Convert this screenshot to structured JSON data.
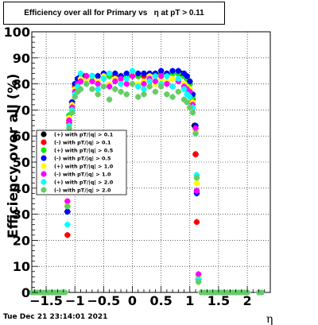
{
  "title": "Efficiency over all for Primary vs   η at pT > 0.11",
  "footer": "Tue Dec 21 23:14:01 2021",
  "chart_data": {
    "type": "scatter",
    "title": "Efficiency over all for Primary vs   η at pT > 0.11",
    "xlabel": "η",
    "ylabel": "Efficiency over all (%)",
    "xlim": [
      -1.75,
      2.4
    ],
    "ylim": [
      0,
      100
    ],
    "x_ticks": [
      -1.5,
      -1,
      -0.5,
      0,
      0.5,
      1,
      1.5,
      2
    ],
    "x_tick_labels": [
      "−1.5",
      "−1",
      "−0.5",
      "0",
      "0.5",
      "1",
      "1.5",
      "2"
    ],
    "y_ticks": [
      0,
      10,
      20,
      30,
      40,
      50,
      60,
      70,
      80,
      90,
      100
    ],
    "grid": true,
    "legend_position": "left-middle",
    "series": [
      {
        "name": "(+) with pT/|q| > 0.1",
        "color": "#000000",
        "x": [
          -1.13,
          -1.1,
          -1.05,
          -1.0,
          -0.95,
          -0.9,
          -0.85,
          -0.8,
          -0.7,
          -0.6,
          -0.5,
          -0.4,
          -0.3,
          -0.2,
          -0.1,
          0.0,
          0.1,
          0.2,
          0.3,
          0.4,
          0.5,
          0.6,
          0.7,
          0.8,
          0.85,
          0.9,
          0.95,
          1.0,
          1.05,
          1.08,
          1.1,
          1.12,
          1.15
        ],
        "y": [
          31,
          66,
          73,
          80,
          82,
          83,
          83,
          83,
          83,
          83,
          83,
          83,
          83,
          83,
          83,
          83,
          83,
          83,
          84,
          84,
          84,
          84,
          84,
          84,
          84,
          83,
          82,
          80,
          73,
          64,
          53,
          39,
          5
        ]
      },
      {
        "name": "(-) with pT/|q| > 0.1",
        "color": "#ff0000",
        "x": [
          -1.13,
          -1.1,
          -1.05,
          -1.0,
          -0.95,
          -0.9,
          -0.8,
          -0.7,
          -0.6,
          -0.5,
          -0.4,
          -0.3,
          -0.2,
          -0.1,
          0.0,
          0.1,
          0.2,
          0.3,
          0.4,
          0.5,
          0.6,
          0.7,
          0.8,
          0.9,
          0.95,
          1.0,
          1.05,
          1.1,
          1.12,
          1.15
        ],
        "y": [
          22,
          65,
          72,
          79,
          82,
          82,
          83,
          83,
          83,
          83,
          83,
          83,
          83,
          83,
          83,
          83,
          83,
          84,
          84,
          84,
          84,
          84,
          84,
          83,
          82,
          80,
          74,
          53,
          27,
          5
        ]
      },
      {
        "name": "(+) with pT/|q| > 0.5",
        "color": "#00ee00",
        "x": [
          -1.13,
          -1.1,
          -1.05,
          -1.0,
          -0.95,
          -0.9,
          -0.8,
          -0.7,
          -0.6,
          -0.5,
          -0.4,
          -0.3,
          -0.2,
          -0.1,
          0.0,
          0.1,
          0.2,
          0.3,
          0.4,
          0.5,
          0.6,
          0.7,
          0.8,
          0.9,
          0.95,
          1.0,
          1.05,
          1.1,
          1.12,
          1.15
        ],
        "y": [
          33,
          68,
          73,
          80,
          82,
          83,
          83,
          83,
          83,
          83,
          83,
          84,
          83,
          83,
          84,
          83,
          84,
          84,
          84,
          84,
          84,
          84,
          84,
          83,
          82,
          80,
          75,
          63,
          45,
          6
        ]
      },
      {
        "name": "(-) with pT/|q| > 0.5",
        "color": "#0000ff",
        "x": [
          -1.13,
          -1.1,
          -1.05,
          -1.0,
          -0.95,
          -0.9,
          -0.8,
          -0.7,
          -0.6,
          -0.5,
          -0.4,
          -0.3,
          -0.2,
          -0.1,
          0.0,
          0.1,
          0.2,
          0.3,
          0.4,
          0.5,
          0.6,
          0.7,
          0.8,
          0.9,
          0.95,
          1.0,
          1.05,
          1.1,
          1.12,
          1.15
        ],
        "y": [
          31,
          67,
          73,
          80,
          82,
          83,
          83,
          83,
          83,
          84,
          84,
          84,
          83,
          84,
          84,
          84,
          84,
          84,
          84,
          85,
          84,
          85,
          85,
          84,
          83,
          81,
          76,
          64,
          38,
          5
        ]
      },
      {
        "name": "(+) with pT/|q| > 1.0",
        "color": "#ffff00",
        "x": [
          -1.13,
          -1.1,
          -1.05,
          -1.0,
          -0.95,
          -0.9,
          -0.8,
          -0.7,
          -0.6,
          -0.5,
          -0.4,
          -0.3,
          -0.2,
          -0.1,
          0.0,
          0.1,
          0.2,
          0.3,
          0.4,
          0.5,
          0.6,
          0.7,
          0.8,
          0.9,
          0.95,
          1.0,
          1.05,
          1.1,
          1.12,
          1.15
        ],
        "y": [
          34,
          67,
          72,
          78,
          80,
          82,
          82,
          82,
          81,
          83,
          80,
          82,
          81,
          82,
          84,
          80,
          81,
          83,
          80,
          82,
          81,
          82,
          81,
          80,
          79,
          78,
          73,
          62,
          42,
          6
        ]
      },
      {
        "name": "(-) with pT/|q| > 1.0",
        "color": "#ff00ff",
        "x": [
          -1.13,
          -1.1,
          -1.05,
          -1.0,
          -0.95,
          -0.9,
          -0.8,
          -0.7,
          -0.6,
          -0.5,
          -0.4,
          -0.3,
          -0.2,
          -0.1,
          0.0,
          0.1,
          0.2,
          0.3,
          0.4,
          0.5,
          0.6,
          0.7,
          0.8,
          0.9,
          0.95,
          1.0,
          1.05,
          1.1,
          1.12,
          1.15
        ],
        "y": [
          35,
          66,
          71,
          77,
          80,
          81,
          83,
          81,
          80,
          82,
          79,
          81,
          82,
          80,
          83,
          79,
          80,
          82,
          81,
          83,
          80,
          79,
          81,
          79,
          78,
          77,
          72,
          63,
          39,
          7
        ]
      },
      {
        "name": "(+) with pT/|q| > 2.0",
        "color": "#00ffff",
        "x": [
          -1.13,
          -1.1,
          -1.05,
          -1.0,
          -0.95,
          -0.9,
          -0.8,
          -0.7,
          -0.6,
          -0.5,
          -0.4,
          -0.3,
          -0.2,
          -0.1,
          0.0,
          0.1,
          0.2,
          0.3,
          0.4,
          0.5,
          0.6,
          0.7,
          0.8,
          0.9,
          0.95,
          1.0,
          1.05,
          1.1,
          1.12,
          1.15
        ],
        "y": [
          26,
          64,
          70,
          76,
          79,
          84,
          80,
          83,
          78,
          82,
          84,
          78,
          80,
          82,
          85,
          79,
          78,
          81,
          83,
          80,
          83,
          79,
          82,
          78,
          76,
          75,
          71,
          61,
          45,
          5
        ]
      },
      {
        "name": "(-) with pT/|q| > 2.0",
        "color": "#66cc66",
        "x": [
          -1.13,
          -1.1,
          -1.05,
          -1.0,
          -0.95,
          -0.9,
          -0.8,
          -0.7,
          -0.6,
          -0.5,
          -0.4,
          -0.3,
          -0.2,
          -0.1,
          0.0,
          0.1,
          0.2,
          0.3,
          0.4,
          0.5,
          0.6,
          0.7,
          0.8,
          0.9,
          0.95,
          1.0,
          1.05,
          1.1,
          1.12,
          1.15
        ],
        "y": [
          33,
          63,
          69,
          75,
          77,
          78,
          80,
          78,
          76,
          79,
          74,
          78,
          77,
          76,
          80,
          75,
          76,
          79,
          77,
          79,
          76,
          75,
          77,
          74,
          73,
          71,
          69,
          61,
          44,
          4
        ]
      }
    ],
    "flat_regions": {
      "x_low": [
        -1.75,
        -1.7,
        -1.65,
        -1.6,
        -1.55,
        -1.5,
        -1.45,
        -1.4,
        -1.35,
        -1.3,
        -1.25,
        -1.2,
        -1.17
      ],
      "x_high": [
        1.2,
        1.25,
        1.3,
        1.35,
        1.4,
        1.45,
        1.5,
        1.55,
        1.6,
        1.65,
        1.7,
        1.75,
        1.8,
        1.85,
        1.9,
        1.95,
        2.0,
        2.2,
        2.25
      ],
      "y": 0
    }
  }
}
